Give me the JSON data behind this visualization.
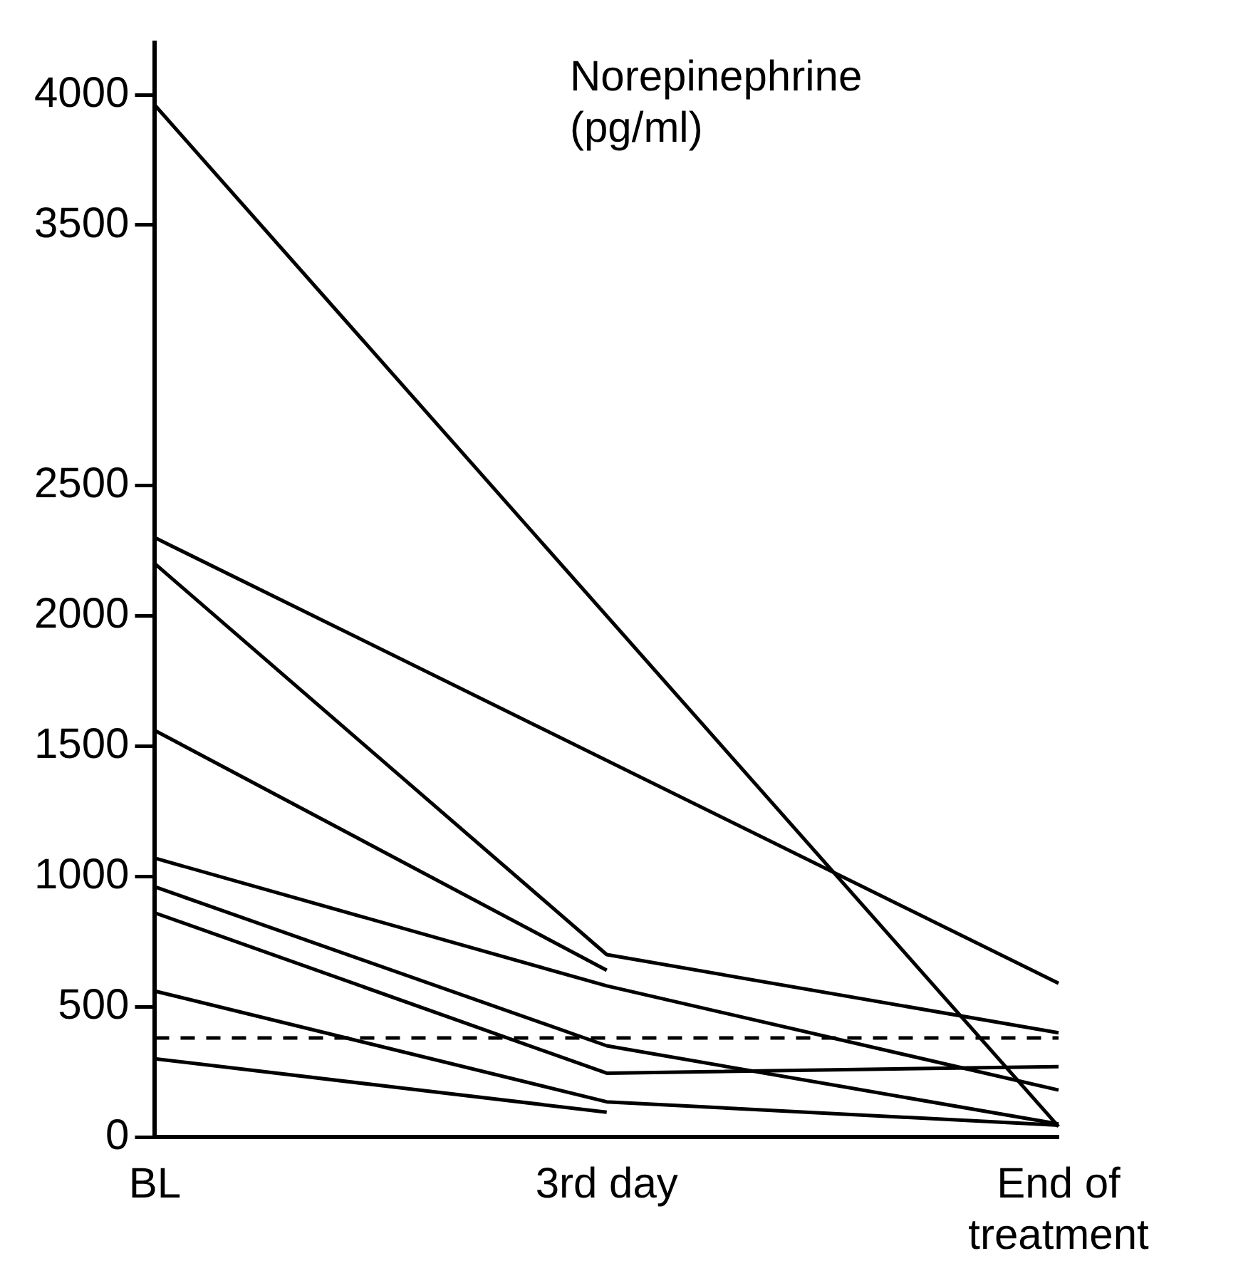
{
  "chart_data": {
    "type": "line",
    "ylabel": "Norepinephrine (pg/ml)",
    "categories": [
      "BL",
      "3rd day",
      "End of treatment"
    ],
    "marker": "none",
    "ylim": [
      0,
      4200
    ],
    "yticks": [
      0,
      500,
      1000,
      1500,
      2000,
      2500,
      3500,
      4000
    ],
    "series": [
      {
        "color": "#000000",
        "values": [
          3960,
          null,
          40
        ]
      },
      {
        "color": "#000000",
        "values": [
          2300,
          null,
          590
        ]
      },
      {
        "color": "#000000",
        "values": [
          2200,
          700,
          400
        ]
      },
      {
        "color": "#000000",
        "values": [
          1560,
          640,
          null
        ]
      },
      {
        "color": "#000000",
        "values": [
          1070,
          580,
          180
        ]
      },
      {
        "color": "#000000",
        "values": [
          960,
          350,
          50
        ]
      },
      {
        "color": "#000000",
        "values": [
          860,
          245,
          270
        ]
      },
      {
        "color": "#000000",
        "values": [
          560,
          135,
          45
        ]
      },
      {
        "color": "#000000",
        "values": [
          300,
          95,
          null
        ]
      }
    ],
    "ref_lines": [
      {
        "axis": "y",
        "value": 380,
        "line_style": "dashed",
        "color": "#000000"
      }
    ]
  }
}
